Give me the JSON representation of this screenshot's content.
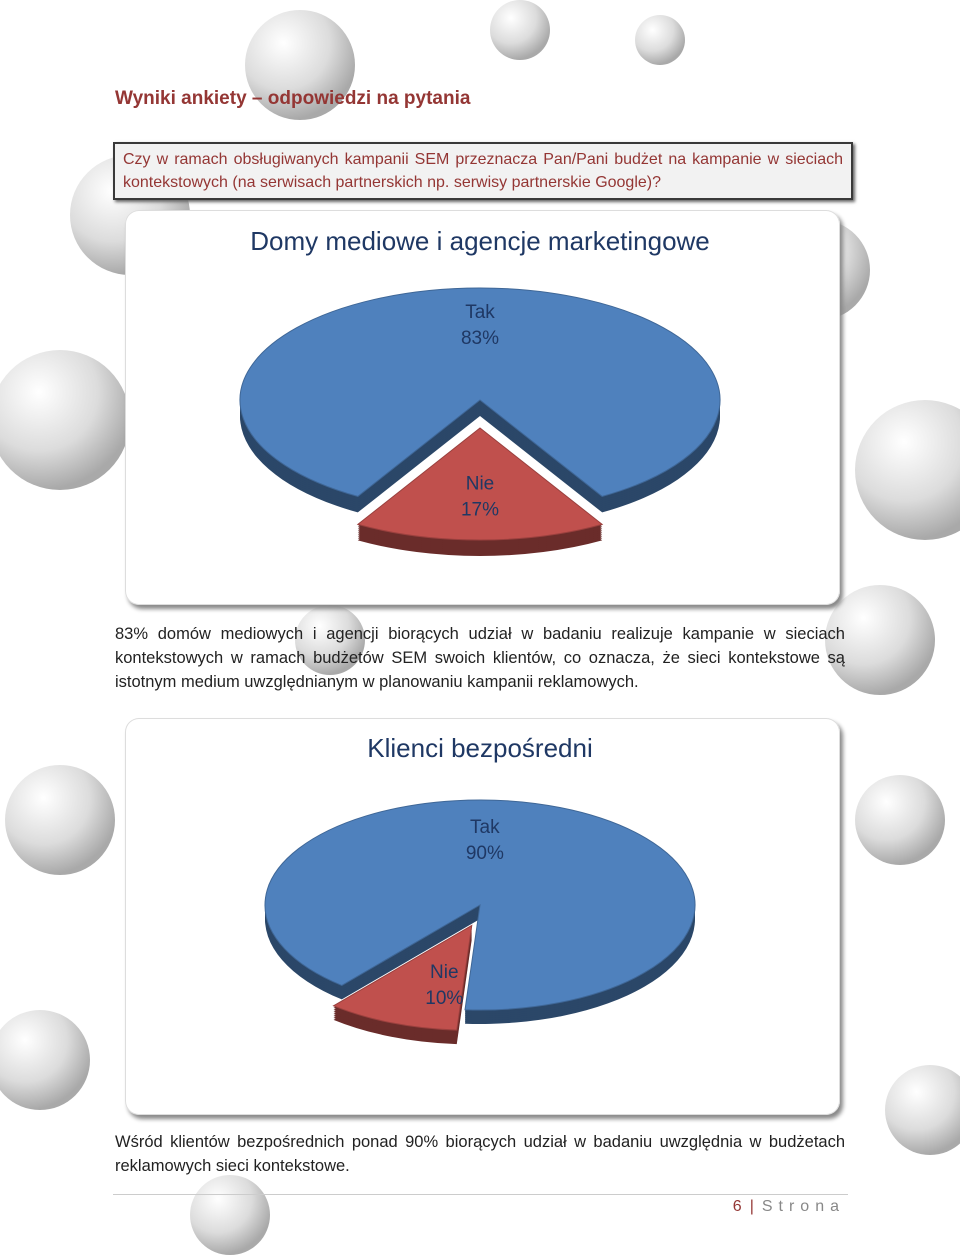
{
  "heading": "Wyniki ankiety – odpowiedzi na pytania",
  "question": "Czy w ramach obsługiwanych kampanii SEM przeznacza Pan/Pani budżet na kampanie w sieciach kontekstowych (na serwisach partnerskich np. serwisy partnerskie Google)?",
  "chart_data": [
    {
      "type": "pie",
      "title": "Domy mediowe i agencje marketingowe",
      "categories": [
        "Tak",
        "Nie"
      ],
      "values": [
        83,
        17
      ],
      "value_labels": [
        "83%",
        "17%"
      ],
      "colors": [
        "#4f81bd",
        "#c0504d"
      ]
    },
    {
      "type": "pie",
      "title": "Klienci bezpośredni",
      "categories": [
        "Tak",
        "Nie"
      ],
      "values": [
        90,
        10
      ],
      "value_labels": [
        "90%",
        "10%"
      ],
      "colors": [
        "#4f81bd",
        "#c0504d"
      ]
    }
  ],
  "paragraphs": [
    "83% domów mediowych i agencji biorących udział w badaniu realizuje kampanie w sieciach kontekstowych w ramach budżetów SEM swoich klientów, co oznacza, że sieci kontekstowe są istotnym medium uwzględnianym w planowaniu kampanii reklamowych.",
    "Wśród klientów bezpośrednich ponad 90% biorących udział w badaniu uwzględnia w budżetach reklamowych sieci kontekstowe."
  ],
  "footer": {
    "page_number": "6",
    "separator": "|",
    "label": "Strona"
  }
}
